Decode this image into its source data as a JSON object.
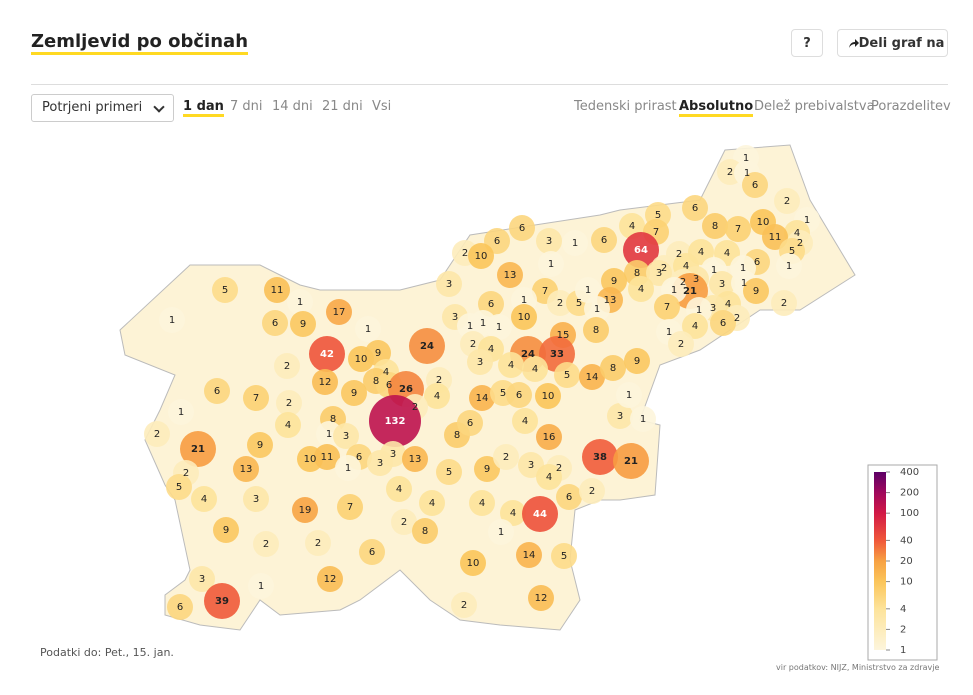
{
  "header": {
    "title": "Zemljevid po občinah",
    "help": "?",
    "share": "Deli graf na"
  },
  "controls": {
    "measure": "Potrjeni primeri",
    "periods": [
      "1 dan",
      "7 dni",
      "14 dni",
      "21 dni",
      "Vsi"
    ],
    "active_period": 0,
    "modes": [
      "Tedenski prirast",
      "Absolutno",
      "Delež prebivalstva",
      "Porazdelitev"
    ],
    "active_mode": 1
  },
  "map": {
    "region_values": [
      1,
      2,
      1,
      6,
      2,
      6,
      5,
      4,
      7,
      8,
      10,
      7,
      1,
      4,
      11,
      2,
      6,
      64,
      5,
      2,
      4,
      4,
      6,
      1,
      2,
      8,
      3,
      4,
      1,
      1,
      3,
      2,
      21,
      1,
      4,
      9,
      3,
      1,
      9,
      2,
      4,
      3,
      2,
      7,
      1,
      6,
      4,
      1,
      2,
      3,
      1,
      6,
      6,
      2,
      10,
      1,
      13,
      3,
      7,
      6,
      1,
      2,
      5,
      1,
      13,
      3,
      1,
      1,
      1,
      10,
      1,
      15,
      2,
      4,
      8,
      24,
      24,
      33,
      3,
      4,
      4,
      5,
      14,
      8,
      9,
      5,
      11,
      1,
      1,
      6,
      9,
      17,
      1,
      42,
      10,
      9,
      2,
      4,
      12,
      8,
      6,
      26,
      6,
      7,
      2,
      9,
      2,
      4,
      14,
      5,
      6,
      10,
      1,
      2,
      132,
      8,
      4,
      2,
      1,
      3,
      8,
      21,
      9,
      6,
      4,
      16,
      3,
      1,
      1,
      38,
      21,
      10,
      11,
      6,
      3,
      3,
      13,
      5,
      9,
      2,
      3,
      2,
      4,
      2,
      13,
      1,
      5,
      4,
      3,
      4,
      4,
      4,
      44,
      6,
      2,
      19,
      7,
      4,
      9,
      2,
      8,
      2,
      2,
      6,
      1,
      14,
      5,
      10,
      3,
      1,
      12,
      39,
      6,
      2,
      12
    ],
    "legend": {
      "ticks": [
        1,
        2,
        4,
        10,
        20,
        40,
        100,
        200,
        400
      ],
      "colors": [
        "#fdf5dc",
        "#fdecbb",
        "#fde39a",
        "#fbc55a",
        "#f7a142",
        "#f0573a",
        "#d21946",
        "#a0085c",
        "#5c0066"
      ]
    }
  },
  "footer": {
    "as_of": "Podatki do: Pet., 15. jan.",
    "source": "vir podatkov: NIJZ, Ministrstvo za zdravje"
  }
}
